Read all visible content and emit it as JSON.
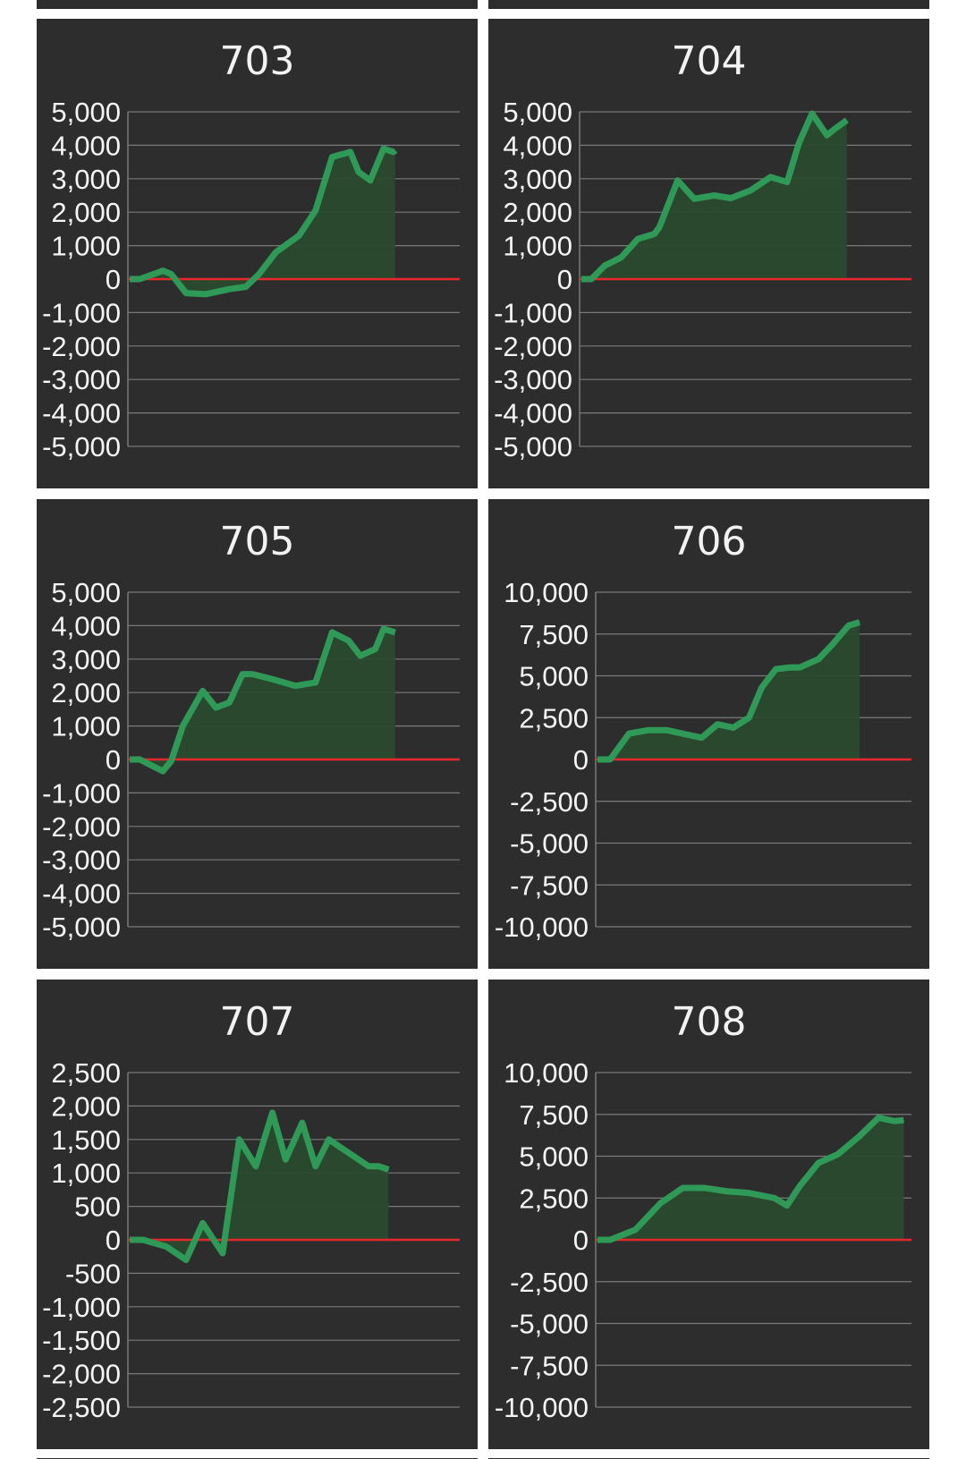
{
  "colors": {
    "panel_bg": "#2d2d2d",
    "grid": "#7a7a7a",
    "zero_line": "#e8262b",
    "series_line": "#2f9a57",
    "series_fill": "#2a4a2d",
    "text": "#f5f5f5"
  },
  "chart_data": [
    {
      "type": "area",
      "title": "703",
      "ylim": [
        -5000,
        5000
      ],
      "yticks": [
        5000,
        4000,
        3000,
        2000,
        1000,
        0,
        -1000,
        -2000,
        -3000,
        -4000,
        -5000
      ],
      "ytick_labels": [
        "5,000",
        "4,000",
        "3,000",
        "2,000",
        "1,000",
        "0",
        "-1,000",
        "-2,000",
        "-3,000",
        "-4,000",
        "-5,000"
      ],
      "grid": true,
      "series": [
        {
          "x": [
            0,
            0.03,
            0.1,
            0.125,
            0.17,
            0.23,
            0.3,
            0.35,
            0.39,
            0.44,
            0.51,
            0.56,
            0.61,
            0.665,
            0.69,
            0.725,
            0.765,
            0.795,
            0.8
          ],
          "values": [
            0,
            0,
            250,
            150,
            -420,
            -450,
            -300,
            -230,
            150,
            800,
            1300,
            2050,
            3650,
            3800,
            3200,
            2950,
            3900,
            3800,
            3850
          ]
        }
      ]
    },
    {
      "type": "area",
      "title": "704",
      "ylim": [
        -5000,
        5000
      ],
      "yticks": [
        5000,
        4000,
        3000,
        2000,
        1000,
        0,
        -1000,
        -2000,
        -3000,
        -4000,
        -5000
      ],
      "ytick_labels": [
        "5,000",
        "4,000",
        "3,000",
        "2,000",
        "1,000",
        "0",
        "-1,000",
        "-2,000",
        "-3,000",
        "-4,000",
        "-5,000"
      ],
      "grid": true,
      "series": [
        {
          "x": [
            0,
            0.03,
            0.07,
            0.12,
            0.17,
            0.22,
            0.235,
            0.29,
            0.34,
            0.4,
            0.45,
            0.51,
            0.57,
            0.62,
            0.655,
            0.695,
            0.74,
            0.765,
            0.8
          ],
          "values": [
            0,
            0,
            400,
            650,
            1200,
            1350,
            1550,
            2950,
            2400,
            2500,
            2420,
            2650,
            3050,
            2900,
            4050,
            4950,
            4300,
            4500,
            4750
          ]
        }
      ]
    },
    {
      "type": "area",
      "title": "705",
      "ylim": [
        -5000,
        5000
      ],
      "yticks": [
        5000,
        4000,
        3000,
        2000,
        1000,
        0,
        -1000,
        -2000,
        -3000,
        -4000,
        -5000
      ],
      "ytick_labels": [
        "5,000",
        "4,000",
        "3,000",
        "2,000",
        "1,000",
        "0",
        "-1,000",
        "-2,000",
        "-3,000",
        "-4,000",
        "-5,000"
      ],
      "grid": true,
      "series": [
        {
          "x": [
            0,
            0.03,
            0.1,
            0.125,
            0.16,
            0.22,
            0.26,
            0.3,
            0.34,
            0.37,
            0.43,
            0.5,
            0.56,
            0.61,
            0.66,
            0.695,
            0.74,
            0.765,
            0.8
          ],
          "values": [
            0,
            0,
            -350,
            -50,
            1000,
            2050,
            1550,
            1700,
            2550,
            2550,
            2400,
            2200,
            2300,
            3800,
            3550,
            3100,
            3300,
            3900,
            3800
          ]
        }
      ]
    },
    {
      "type": "area",
      "title": "706",
      "ylim": [
        -10000,
        10000
      ],
      "yticks": [
        10000,
        7500,
        5000,
        2500,
        0,
        -2500,
        -5000,
        -7500,
        -10000
      ],
      "ytick_labels": [
        "10,000",
        "7,500",
        "5,000",
        "2,500",
        "0",
        "-2,500",
        "-5,000",
        "-7,500",
        "-10,000"
      ],
      "grid": true,
      "series": [
        {
          "x": [
            0,
            0.04,
            0.1,
            0.16,
            0.22,
            0.28,
            0.33,
            0.38,
            0.43,
            0.48,
            0.52,
            0.565,
            0.61,
            0.64,
            0.7,
            0.745,
            0.795,
            0.83
          ],
          "values": [
            0,
            0,
            1550,
            1750,
            1750,
            1500,
            1300,
            2100,
            1900,
            2500,
            4300,
            5400,
            5500,
            5500,
            6000,
            6900,
            8000,
            8200
          ]
        }
      ]
    },
    {
      "type": "area",
      "title": "707",
      "ylim": [
        -2500,
        2500
      ],
      "yticks": [
        2500,
        2000,
        1500,
        1000,
        500,
        0,
        -500,
        -1000,
        -1500,
        -2000,
        -2500
      ],
      "ytick_labels": [
        "2,500",
        "2,000",
        "1,500",
        "1,000",
        "500",
        "0",
        "-500",
        "-1,000",
        "-1,500",
        "-2,000",
        "-2,500"
      ],
      "grid": true,
      "series": [
        {
          "x": [
            0,
            0.04,
            0.11,
            0.17,
            0.22,
            0.28,
            0.33,
            0.38,
            0.43,
            0.47,
            0.52,
            0.56,
            0.6,
            0.66,
            0.72,
            0.75,
            0.78
          ],
          "values": [
            0,
            0,
            -100,
            -300,
            250,
            -200,
            1500,
            1100,
            1900,
            1200,
            1750,
            1100,
            1500,
            1300,
            1100,
            1100,
            1050
          ]
        }
      ]
    },
    {
      "type": "area",
      "title": "708",
      "ylim": [
        -10000,
        10000
      ],
      "yticks": [
        10000,
        7500,
        5000,
        2500,
        0,
        -2500,
        -5000,
        -7500,
        -10000
      ],
      "ytick_labels": [
        "10,000",
        "7,500",
        "5,000",
        "2,500",
        "0",
        "-2,500",
        "-5,000",
        "-7,500",
        "-10,000"
      ],
      "grid": true,
      "series": [
        {
          "x": [
            0,
            0.04,
            0.12,
            0.2,
            0.27,
            0.34,
            0.41,
            0.48,
            0.56,
            0.6,
            0.64,
            0.7,
            0.76,
            0.83,
            0.89,
            0.94,
            0.97
          ],
          "values": [
            0,
            0,
            600,
            2200,
            3100,
            3100,
            2900,
            2800,
            2500,
            2050,
            3200,
            4600,
            5100,
            6200,
            7300,
            7100,
            7150
          ]
        }
      ]
    }
  ]
}
